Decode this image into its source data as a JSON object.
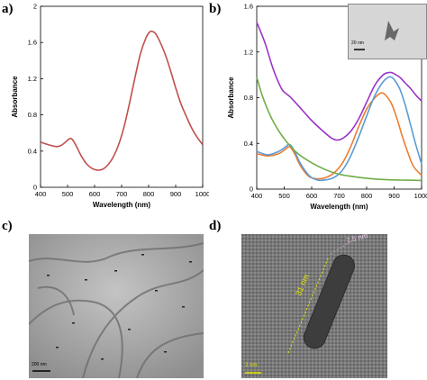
{
  "panels": {
    "a": "a)",
    "b": "b)",
    "c": "c)",
    "d": "d)"
  },
  "chart_data": [
    {
      "type": "line",
      "panel": "a",
      "xlabel": "Wavelength (nm)",
      "ylabel": "Absorbance",
      "xlim": [
        400,
        1000
      ],
      "ylim": [
        0,
        2
      ],
      "xticks": [
        "400",
        "500",
        "600",
        "700",
        "800",
        "900",
        "1000"
      ],
      "yticks": [
        "0",
        "0.4",
        "0.8",
        "1.2",
        "1.6",
        "2"
      ],
      "grid": false,
      "legend": "none",
      "series": [
        {
          "color": "#c0504d",
          "x": [
            400,
            430,
            460,
            480,
            500,
            510,
            520,
            535,
            550,
            570,
            590,
            610,
            630,
            650,
            670,
            690,
            710,
            730,
            750,
            770,
            790,
            805,
            815,
            825,
            840,
            860,
            880,
            900,
            920,
            940,
            960,
            980,
            1000
          ],
          "y": [
            0.5,
            0.47,
            0.45,
            0.47,
            0.52,
            0.54,
            0.52,
            0.44,
            0.35,
            0.26,
            0.21,
            0.19,
            0.2,
            0.25,
            0.34,
            0.48,
            0.68,
            0.94,
            1.22,
            1.48,
            1.65,
            1.72,
            1.72,
            1.7,
            1.62,
            1.48,
            1.3,
            1.1,
            0.92,
            0.78,
            0.65,
            0.55,
            0.47
          ]
        }
      ]
    },
    {
      "type": "line",
      "panel": "b",
      "xlabel": "Wavelength (nm)",
      "ylabel": "Absorbance",
      "xlim": [
        400,
        1000
      ],
      "ylim": [
        0,
        1.6
      ],
      "xticks": [
        "400",
        "500",
        "600",
        "700",
        "800",
        "900",
        "1000"
      ],
      "yticks": [
        "0",
        "0.4",
        "0.8",
        "1.2",
        "1.6"
      ],
      "grid": false,
      "legend": "none",
      "series": [
        {
          "color": "#9b34c7",
          "x": [
            400,
            430,
            460,
            490,
            510,
            520,
            540,
            570,
            600,
            640,
            670,
            690,
            710,
            740,
            770,
            800,
            830,
            860,
            880,
            890,
            900,
            920,
            940,
            960,
            980,
            1000
          ],
          "y": [
            1.46,
            1.28,
            1.05,
            0.88,
            0.83,
            0.81,
            0.76,
            0.68,
            0.6,
            0.51,
            0.45,
            0.43,
            0.44,
            0.5,
            0.61,
            0.76,
            0.91,
            1.0,
            1.02,
            1.02,
            1.01,
            0.98,
            0.93,
            0.88,
            0.82,
            0.77
          ]
        },
        {
          "color": "#ed7d31",
          "x": [
            400,
            440,
            480,
            505,
            515,
            525,
            540,
            560,
            590,
            620,
            650,
            680,
            710,
            740,
            770,
            800,
            830,
            850,
            860,
            870,
            890,
            910,
            930,
            950,
            970,
            1000
          ],
          "y": [
            0.31,
            0.29,
            0.31,
            0.35,
            0.37,
            0.36,
            0.3,
            0.2,
            0.11,
            0.09,
            0.1,
            0.14,
            0.22,
            0.36,
            0.54,
            0.7,
            0.8,
            0.84,
            0.84,
            0.82,
            0.75,
            0.62,
            0.46,
            0.32,
            0.2,
            0.12
          ]
        },
        {
          "color": "#5b9bd5",
          "x": [
            400,
            440,
            480,
            505,
            515,
            525,
            540,
            560,
            590,
            620,
            650,
            680,
            710,
            740,
            770,
            800,
            830,
            860,
            880,
            890,
            900,
            920,
            940,
            960,
            980,
            1000
          ],
          "y": [
            0.33,
            0.3,
            0.33,
            0.37,
            0.39,
            0.38,
            0.32,
            0.22,
            0.12,
            0.08,
            0.08,
            0.1,
            0.16,
            0.28,
            0.45,
            0.64,
            0.82,
            0.94,
            0.98,
            0.98,
            0.96,
            0.88,
            0.74,
            0.56,
            0.38,
            0.22
          ]
        },
        {
          "color": "#70ad47",
          "x": [
            400,
            420,
            450,
            480,
            510,
            550,
            600,
            650,
            700,
            750,
            800,
            850,
            900,
            950,
            1000
          ],
          "y": [
            0.98,
            0.82,
            0.64,
            0.51,
            0.41,
            0.31,
            0.23,
            0.17,
            0.13,
            0.11,
            0.095,
            0.085,
            0.08,
            0.078,
            0.075
          ]
        }
      ],
      "inset": {
        "scale_label": "20 nm"
      }
    }
  ],
  "micrographs": {
    "c": {
      "scale_label": "200 nm"
    },
    "d": {
      "scale_label": "2 nm",
      "length_label": "31 nm",
      "width_label": "7.5 nm"
    }
  }
}
